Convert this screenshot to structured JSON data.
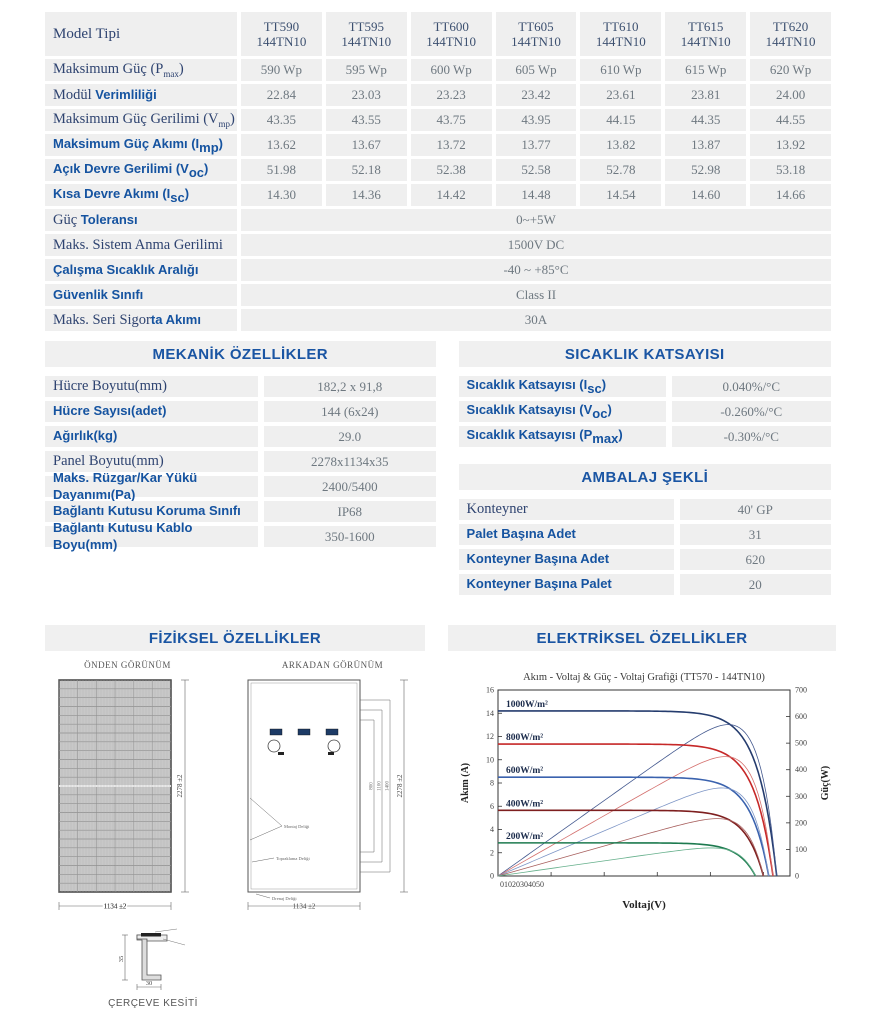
{
  "colors": {
    "band_bg": "#efefef",
    "header_bg": "#f0f0f0",
    "label_serif": "#2e4370",
    "label_bold": "#1553a0",
    "value_text": "#6e7880",
    "section_title": "#1a55a3"
  },
  "model_table": {
    "header_label": "Model Tipi",
    "models": [
      {
        "line1": "TT590",
        "line2": "144TN10"
      },
      {
        "line1": "TT595",
        "line2": "144TN10"
      },
      {
        "line1": "TT600",
        "line2": "144TN10"
      },
      {
        "line1": "TT605",
        "line2": "144TN10"
      },
      {
        "line1": "TT610",
        "line2": "144TN10"
      },
      {
        "line1": "TT615",
        "line2": "144TN10"
      },
      {
        "line1": "TT620",
        "line2": "144TN10"
      }
    ],
    "rows": [
      {
        "label_parts": [
          {
            "t": "Maksimum Güç (P"
          },
          {
            "t": "max",
            "sub": true
          },
          {
            "t": ")"
          }
        ],
        "values": [
          "590 Wp",
          "595 Wp",
          "600 Wp",
          "605 Wp",
          "610 Wp",
          "615 Wp",
          "620 Wp"
        ]
      },
      {
        "label_parts": [
          {
            "t": "Modül "
          },
          {
            "t": "Verimliliği",
            "b": true
          }
        ],
        "values": [
          "22.84",
          "23.03",
          "23.23",
          "23.42",
          "23.61",
          "23.81",
          "24.00"
        ]
      },
      {
        "label_parts": [
          {
            "t": "Maksimum Güç Gerilimi (V"
          },
          {
            "t": "mp",
            "sub": true
          },
          {
            "t": ")"
          }
        ],
        "values": [
          "43.35",
          "43.55",
          "43.75",
          "43.95",
          "44.15",
          "44.35",
          "44.55"
        ]
      },
      {
        "label_parts": [
          {
            "t": "Maksimum Güç Akımı (I",
            "b": true
          },
          {
            "t": "mp",
            "b": true,
            "sub": true
          },
          {
            "t": ")",
            "b": true
          }
        ],
        "values": [
          "13.62",
          "13.67",
          "13.72",
          "13.77",
          "13.82",
          "13.87",
          "13.92"
        ]
      },
      {
        "label_parts": [
          {
            "t": "Açık Devre Gerilimi (V",
            "b": true
          },
          {
            "t": "oc",
            "b": true,
            "sub": true
          },
          {
            "t": ")",
            "b": true
          }
        ],
        "values": [
          "51.98",
          "52.18",
          "52.38",
          "52.58",
          "52.78",
          "52.98",
          "53.18"
        ]
      },
      {
        "label_parts": [
          {
            "t": "Kısa Devre Akımı (I",
            "b": true
          },
          {
            "t": "sc",
            "b": true,
            "sub": true
          },
          {
            "t": ")",
            "b": true
          }
        ],
        "values": [
          "14.30",
          "14.36",
          "14.42",
          "14.48",
          "14.54",
          "14.60",
          "14.66"
        ]
      }
    ],
    "span_rows": [
      {
        "label_parts": [
          {
            "t": "Güç "
          },
          {
            "t": "Toleransı",
            "b": true
          }
        ],
        "value": "0~+5W"
      },
      {
        "label_parts": [
          {
            "t": "Maks. Sistem Anma Gerilimi"
          }
        ],
        "value": "1500V DC"
      },
      {
        "label_parts": [
          {
            "t": "Çalışma Sıcaklık Aralığı",
            "b": true
          }
        ],
        "value": "-40 ~ +85°C"
      },
      {
        "label_parts": [
          {
            "t": "Güvenlik Sınıfı",
            "b": true
          }
        ],
        "value": "Class II"
      },
      {
        "label_parts": [
          {
            "t": "Maks. Seri Sigor"
          },
          {
            "t": "ta Akımı",
            "b": true
          }
        ],
        "value": "30A"
      }
    ]
  },
  "mechanical": {
    "title": "MEKANİK ÖZELLİKLER",
    "rows": [
      {
        "label_parts": [
          {
            "t": "Hücre Boyutu(mm)"
          }
        ],
        "value": "182,2 x 91,8"
      },
      {
        "label_parts": [
          {
            "t": "Hücre Sayısı(adet)",
            "b": true
          }
        ],
        "value": "144 (6x24)"
      },
      {
        "label_parts": [
          {
            "t": "Ağırlık(kg)",
            "b": true
          }
        ],
        "value": "29.0"
      },
      {
        "label_parts": [
          {
            "t": "Panel Boyutu(mm)"
          }
        ],
        "value": "2278x1134x35"
      },
      {
        "label_parts": [
          {
            "t": "Maks. Rüzgar/Kar Yükü Dayanımı(Pa)",
            "b": true
          }
        ],
        "value": "2400/5400"
      },
      {
        "label_parts": [
          {
            "t": "Bağlantı Kutusu Koruma Sınıfı",
            "b": true
          }
        ],
        "value": "IP68"
      },
      {
        "label_parts": [
          {
            "t": "Bağlantı Kutusu Kablo Boyu(mm)",
            "b": true
          }
        ],
        "value": "350-1600"
      }
    ]
  },
  "temperature": {
    "title": "SICAKLIK KATSAYISI",
    "rows": [
      {
        "label_parts": [
          {
            "t": "Sıcaklık Katsayısı (I",
            "b": true
          },
          {
            "t": "sc",
            "b": true,
            "sub": true
          },
          {
            "t": ")",
            "b": true
          }
        ],
        "value": "0.040%/°C"
      },
      {
        "label_parts": [
          {
            "t": "Sıcaklık Katsayısı (V",
            "b": true
          },
          {
            "t": "oc",
            "b": true,
            "sub": true
          },
          {
            "t": ")",
            "b": true
          }
        ],
        "value": "-0.260%/°C"
      },
      {
        "label_parts": [
          {
            "t": "Sıcaklık Katsayısı (P",
            "b": true
          },
          {
            "t": "max",
            "b": true,
            "sub": true
          },
          {
            "t": ")",
            "b": true
          }
        ],
        "value": "-0.30%/°C"
      }
    ]
  },
  "packaging": {
    "title": "AMBALAJ ŞEKLİ",
    "rows": [
      {
        "label_parts": [
          {
            "t": "Konteyner"
          }
        ],
        "value": "40' GP"
      },
      {
        "label_parts": [
          {
            "t": "Palet Başına Adet",
            "b": true
          }
        ],
        "value": "31"
      },
      {
        "label_parts": [
          {
            "t": "Konteyner Başına Adet",
            "b": true
          }
        ],
        "value": "620"
      },
      {
        "label_parts": [
          {
            "t": "Konteyner Başına Palet",
            "b": true
          }
        ],
        "value": "20"
      }
    ]
  },
  "physical": {
    "title": "FİZİKSEL ÖZELLİKLER",
    "front_view_label": "ÖNDEN GÖRÜNÜM",
    "rear_view_label": "ARKADAN GÖRÜNÜM",
    "frame_caption": "ÇERÇEVE KESİTİ",
    "dims": {
      "height": "2278 ±2",
      "width": "1134 ±2",
      "frame_height": "35",
      "frame_width": "30",
      "rear_hole_dims": [
        "800",
        "1100",
        "1400"
      ]
    },
    "callouts": [
      "Montaj Deliği",
      "Topraklama Deliği",
      "Drenaj Deliği"
    ]
  },
  "electrical": {
    "title": "ELEKTRİKSEL ÖZELLİKLER"
  },
  "chart_data": {
    "type": "line",
    "title": "Akım - Voltaj & Güç - Voltaj Grafiği  (TT570 - 144TN10)",
    "xlabel": "Voltaj(V)",
    "ylabel_left": "Akım (A)",
    "ylabel_right": "Güç(W)",
    "xlim": [
      0,
      55
    ],
    "ylim_left": [
      0,
      16
    ],
    "ylim_right": [
      0,
      700
    ],
    "x_ticks": [
      0,
      10,
      20,
      30,
      40,
      50
    ],
    "x_tick_label_text": "01020304050",
    "y_ticks_left": [
      0,
      2,
      4,
      6,
      8,
      10,
      12,
      14,
      16
    ],
    "y_ticks_right": [
      0,
      100,
      200,
      300,
      400,
      500,
      600,
      700
    ],
    "series": [
      {
        "name": "1000W/m²",
        "isc": 14.2,
        "voc": 52.5,
        "pmax": 570,
        "color": "#253c6e",
        "power_color": "#44598f"
      },
      {
        "name": "800W/m²",
        "isc": 11.35,
        "voc": 51.8,
        "pmax": 460,
        "color": "#c62828",
        "power_color": "#d4706e"
      },
      {
        "name": "600W/m²",
        "isc": 8.5,
        "voc": 51.0,
        "pmax": 345,
        "color": "#3a62ae",
        "power_color": "#7e96c6"
      },
      {
        "name": "400W/m²",
        "isc": 5.65,
        "voc": 50.0,
        "pmax": 230,
        "color": "#7e1f1f",
        "power_color": "#a8605e"
      },
      {
        "name": "200W/m²",
        "isc": 2.85,
        "voc": 48.5,
        "pmax": 113,
        "color": "#1d7a4f",
        "power_color": "#66b08c"
      }
    ]
  }
}
